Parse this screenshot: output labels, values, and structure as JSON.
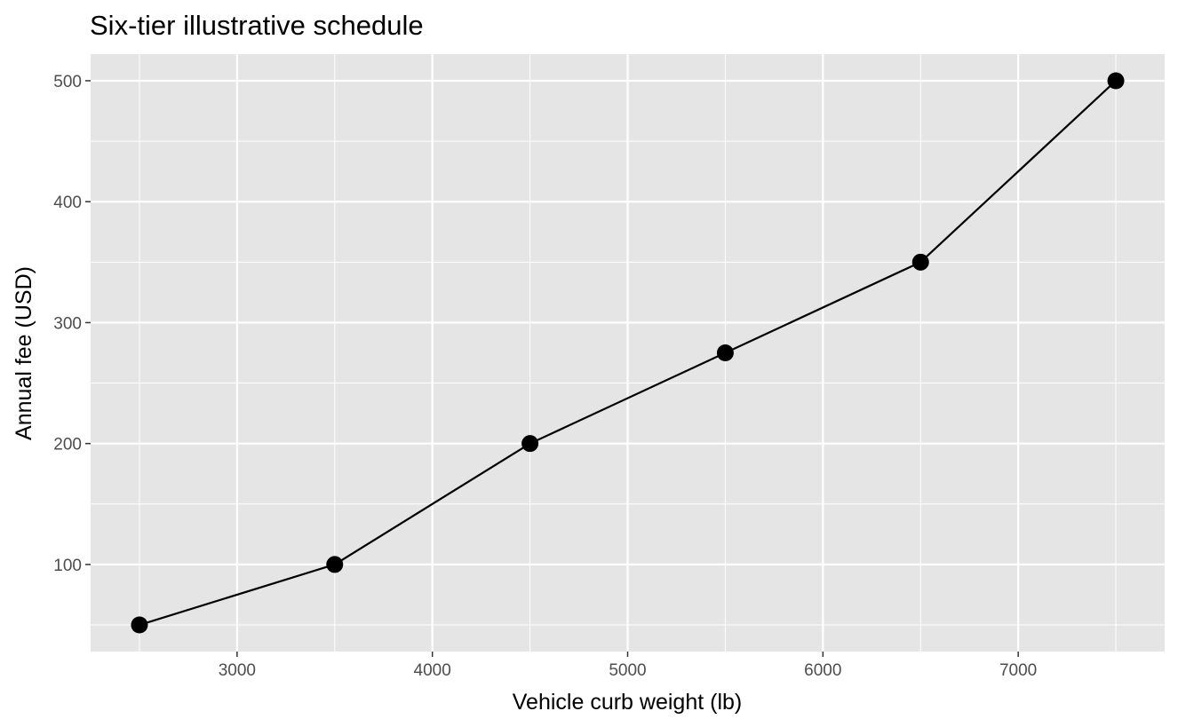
{
  "chart_data": {
    "type": "line",
    "title": "Six‑tier illustrative schedule",
    "xlabel": "Vehicle curb weight (lb)",
    "ylabel": "Annual fee (USD)",
    "xlim": [
      2250,
      7750
    ],
    "ylim": [
      28,
      522
    ],
    "x_ticks": [
      3000,
      4000,
      5000,
      6000,
      7000
    ],
    "y_ticks": [
      100,
      200,
      300,
      400,
      500
    ],
    "grid": true,
    "markers": true,
    "series": [
      {
        "x": [
          2500,
          3500,
          4500,
          5500,
          6500,
          7500
        ],
        "y": [
          50,
          100,
          200,
          275,
          350,
          500
        ]
      }
    ],
    "colors": {
      "panel": "#e5e5e5",
      "grid_major": "#ffffff",
      "line": "#000000",
      "tick_label": "#4d4d4d",
      "tick_mark": "#333333"
    }
  }
}
